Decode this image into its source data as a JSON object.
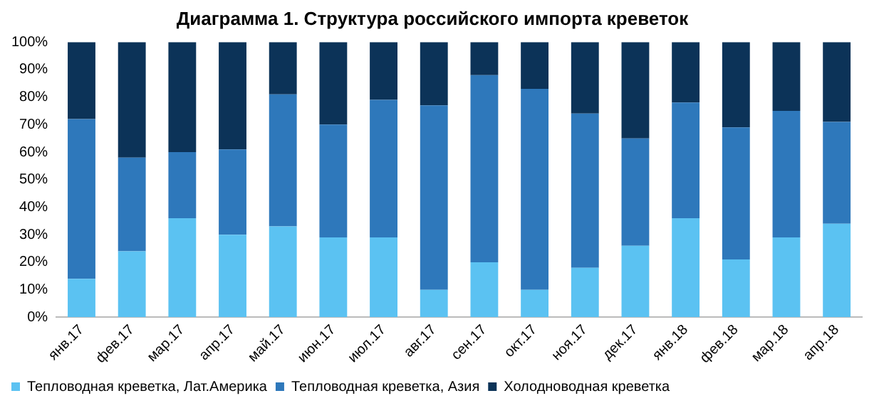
{
  "chart_data": {
    "type": "bar",
    "stacked": true,
    "title": "Диаграмма 1. Структура российского импорта креветок",
    "categories": [
      "янв.17",
      "фев.17",
      "мар.17",
      "апр.17",
      "май.17",
      "июн.17",
      "июл.17",
      "авг.17",
      "сен.17",
      "окт.17",
      "ноя.17",
      "дек.17",
      "янв.18",
      "фев.18",
      "мар.18",
      "апр.18"
    ],
    "series": [
      {
        "name": "Тепловодная креветка, Лат.Америка",
        "color": "#5bc2f2",
        "values": [
          14,
          24,
          36,
          30,
          33,
          29,
          29,
          10,
          20,
          10,
          18,
          26,
          36,
          21,
          29,
          34
        ]
      },
      {
        "name": "Тепловодная креветка, Азия",
        "color": "#2e78bb",
        "values": [
          58,
          34,
          24,
          31,
          48,
          41,
          50,
          67,
          68,
          73,
          56,
          39,
          42,
          48,
          46,
          37
        ]
      },
      {
        "name": "Холодноводная креветка",
        "color": "#0c3358",
        "values": [
          28,
          42,
          40,
          39,
          19,
          30,
          21,
          23,
          12,
          17,
          26,
          35,
          22,
          31,
          25,
          29
        ]
      }
    ],
    "ylim": [
      0,
      100
    ],
    "yticks": [
      {
        "value": 0,
        "label": "0%"
      },
      {
        "value": 10,
        "label": "10%"
      },
      {
        "value": 20,
        "label": "20%"
      },
      {
        "value": 30,
        "label": "30%"
      },
      {
        "value": 40,
        "label": "40%"
      },
      {
        "value": 50,
        "label": "50%"
      },
      {
        "value": 60,
        "label": "60%"
      },
      {
        "value": 70,
        "label": "70%"
      },
      {
        "value": 80,
        "label": "80%"
      },
      {
        "value": 90,
        "label": "90%"
      },
      {
        "value": 100,
        "label": "100%"
      }
    ],
    "grid": false,
    "legend": "bottom"
  }
}
